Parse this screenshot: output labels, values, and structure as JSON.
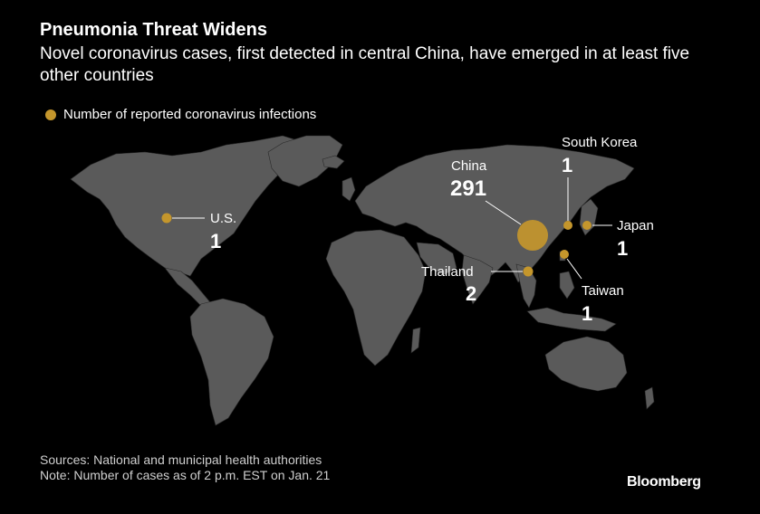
{
  "header": {
    "title": "Pneumonia Threat Widens",
    "subtitle": "Novel coronavirus cases, first detected in central China, have emerged in at least five other countries"
  },
  "legend": {
    "label": "Number of reported coronavirus infections"
  },
  "colors": {
    "background": "#000000",
    "land": "#5a5a5a",
    "marker": "#c4962c",
    "text": "#ffffff"
  },
  "map_data": {
    "locations": [
      {
        "name": "U.S.",
        "value": 1,
        "value_label": "1"
      },
      {
        "name": "China",
        "value": 291,
        "value_label": "291"
      },
      {
        "name": "South Korea",
        "value": 1,
        "value_label": "1"
      },
      {
        "name": "Japan",
        "value": 1,
        "value_label": "1"
      },
      {
        "name": "Thailand",
        "value": 2,
        "value_label": "2"
      },
      {
        "name": "Taiwan",
        "value": 1,
        "value_label": "1"
      }
    ]
  },
  "footer": {
    "sources": "Sources: National and municipal health authorities",
    "note": "Note: Number of cases as of 2 p.m. EST on Jan. 21"
  },
  "brand": "Bloomberg"
}
